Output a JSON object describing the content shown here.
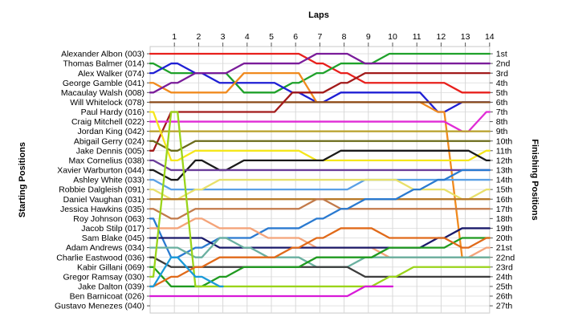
{
  "chart_data": {
    "type": "line",
    "title": "",
    "top_axis_label": "Laps",
    "left_axis_label": "Starting Positions",
    "right_axis_label": "Finishing Positions",
    "x_ticks": [
      "1",
      "2",
      "3",
      "4",
      "5",
      "6",
      "7",
      "8",
      "9",
      "10",
      "11",
      "12",
      "13",
      "14"
    ],
    "laps": [
      0,
      1,
      2,
      3,
      4,
      5,
      6,
      7,
      8,
      9,
      10,
      11,
      12,
      13,
      14
    ],
    "position_range": [
      1,
      27
    ],
    "grid": "vertical and horizontal, light gray",
    "starting_grid": [
      "Alexander Albon (003)",
      "Thomas Balmer (014)",
      "Alex Walker (074)",
      "George Gamble (041)",
      "Macaulay Walsh (008)",
      "Will Whitelock (078)",
      "Paul Hardy (016)",
      "Craig Mitchell (022)",
      "Jordan King (042)",
      "Abigail Gerry (024)",
      "Jake Dennis (005)",
      "Max Cornelius (038)",
      "Xavier Warburton (044)",
      "Ashley White (033)",
      "Robbie Dalgleish (091)",
      "Daniel Vaughan (031)",
      "Jessica Hawkins (035)",
      "Roy Johnson (063)",
      "Jacob Stilp (017)",
      "Sam Blake (045)",
      "Adam Andrews (034)",
      "Charlie Eastwood (036)",
      "Kabir Gillani (069)",
      "Gregor Ramsay (030)",
      "Jake Dalton (039)",
      "Ben Barnicoat (026)",
      "Gustavo Menezes (040)"
    ],
    "finishing_labels": [
      "1st",
      "2nd",
      "3rd",
      "4th",
      "5th",
      "6th",
      "7th",
      "8th",
      "9th",
      "10th",
      "11th",
      "12th",
      "13th",
      "14th",
      "15th",
      "16th",
      "17th",
      "18th",
      "19th",
      "20th",
      "21st",
      "22nd",
      "23rd",
      "24th",
      "25th",
      "26th",
      "27th"
    ],
    "series": [
      {
        "color": "#e8201c",
        "positions": [
          1,
          1,
          1,
          1,
          1,
          1,
          1,
          2,
          3,
          4,
          4,
          4,
          4,
          5,
          5
        ]
      },
      {
        "color": "#1fa12a",
        "positions": [
          2,
          3,
          3,
          3,
          5,
          5,
          4,
          3,
          2,
          2,
          1,
          1,
          1,
          1,
          1
        ]
      },
      {
        "color": "#1f1fd4",
        "positions": [
          3,
          2,
          3,
          4,
          4,
          4,
          5,
          6,
          5,
          5,
          5,
          5,
          7,
          6,
          6
        ]
      },
      {
        "color": "#f08a1e",
        "positions": [
          4,
          5,
          5,
          5,
          3,
          3,
          3,
          6,
          6,
          6,
          6,
          6,
          7,
          22,
          22
        ]
      },
      {
        "color": "#7a1c9a",
        "positions": [
          5,
          4,
          3,
          3,
          2,
          2,
          2,
          1,
          1,
          2,
          2,
          2,
          2,
          2,
          2
        ]
      },
      {
        "color": "#8a4a18",
        "positions": [
          6,
          6,
          6,
          6,
          6,
          6,
          6,
          6,
          6,
          6,
          6,
          6,
          6,
          6,
          6
        ]
      },
      {
        "color": "#a21a1a",
        "positions": [
          11,
          7,
          7,
          7,
          7,
          7,
          5,
          5,
          4,
          3,
          3,
          3,
          3,
          3,
          3
        ]
      },
      {
        "color": "#e02bd6",
        "positions": [
          8,
          8,
          8,
          8,
          8,
          8,
          8,
          8,
          8,
          8,
          8,
          8,
          8,
          9,
          7
        ]
      },
      {
        "color": "#b8a02a",
        "positions": [
          9,
          9,
          9,
          9,
          9,
          9,
          9,
          9,
          9,
          9,
          9,
          9,
          9,
          9,
          9
        ]
      },
      {
        "color": "#6b6b1a",
        "positions": [
          10,
          11,
          10,
          10,
          10,
          10,
          10,
          10,
          10,
          10,
          10,
          10,
          10,
          10,
          10
        ]
      },
      {
        "color": "#f5e61a",
        "positions": [
          7,
          12,
          11,
          11,
          11,
          11,
          11,
          12,
          12,
          12,
          12,
          12,
          12,
          12,
          11
        ]
      },
      {
        "color": "#1a1a1a",
        "positions": [
          13,
          14,
          12,
          13,
          12,
          12,
          12,
          12,
          11,
          11,
          11,
          11,
          11,
          11,
          12
        ]
      },
      {
        "color": "#6a3d9a",
        "positions": [
          12,
          13,
          13,
          13,
          13,
          13,
          13,
          13,
          13,
          13,
          13,
          13,
          13,
          13,
          13
        ]
      },
      {
        "color": "#5aa0e6",
        "positions": [
          14,
          15,
          15,
          15,
          15,
          15,
          15,
          15,
          15,
          14,
          14,
          14,
          14,
          14,
          14
        ]
      },
      {
        "color": "#e8e06a",
        "positions": [
          15,
          16,
          15,
          14,
          14,
          14,
          14,
          14,
          14,
          14,
          14,
          15,
          15,
          16,
          15
        ]
      },
      {
        "color": "#b87a2a",
        "positions": [
          16,
          16,
          16,
          16,
          16,
          16,
          16,
          16,
          16,
          16,
          16,
          16,
          16,
          16,
          16
        ]
      },
      {
        "color": "#c27a4a",
        "positions": [
          17,
          18,
          17,
          17,
          17,
          17,
          17,
          16,
          17,
          17,
          17,
          17,
          17,
          17,
          17
        ]
      },
      {
        "color": "#2a7ad0",
        "positions": [
          18,
          22,
          21,
          20,
          20,
          19,
          19,
          18,
          17,
          16,
          16,
          15,
          14,
          13,
          13
        ]
      },
      {
        "color": "#f4a47a",
        "positions": [
          19,
          19,
          18,
          19,
          19,
          20,
          20,
          21,
          21,
          21,
          22,
          22,
          22,
          22,
          21
        ]
      },
      {
        "color": "#1a1a6a",
        "positions": [
          20,
          20,
          20,
          21,
          21,
          21,
          21,
          21,
          21,
          21,
          21,
          21,
          20,
          19,
          19
        ]
      },
      {
        "color": "#6ab0a0",
        "positions": [
          21,
          21,
          22,
          20,
          21,
          22,
          22,
          23,
          23,
          22,
          22,
          22,
          22,
          22,
          22
        ]
      },
      {
        "color": "#3c3c3c",
        "positions": [
          22,
          23,
          23,
          23,
          23,
          23,
          23,
          23,
          23,
          24,
          24,
          24,
          24,
          24,
          24
        ]
      },
      {
        "color": "#1f9a1f",
        "positions": [
          23,
          25,
          25,
          24,
          23,
          23,
          23,
          22,
          22,
          22,
          21,
          21,
          21,
          20,
          20
        ]
      },
      {
        "color": "#9ad41a",
        "positions": [
          24,
          7,
          25,
          25,
          25,
          25,
          25,
          25,
          25,
          25,
          24,
          23,
          23,
          23,
          23
        ]
      },
      {
        "color": "#e06a1a",
        "positions": [
          25,
          24,
          23,
          22,
          22,
          22,
          21,
          20,
          19,
          19,
          20,
          20,
          20,
          21,
          20
        ]
      },
      {
        "color": "#d81ad8",
        "positions": [
          26,
          26,
          26,
          26,
          26,
          26,
          26,
          26,
          26,
          25,
          25
        ]
      },
      {
        "color": "#1a9ad8",
        "positions": [
          25,
          22,
          24,
          25
        ]
      }
    ]
  }
}
